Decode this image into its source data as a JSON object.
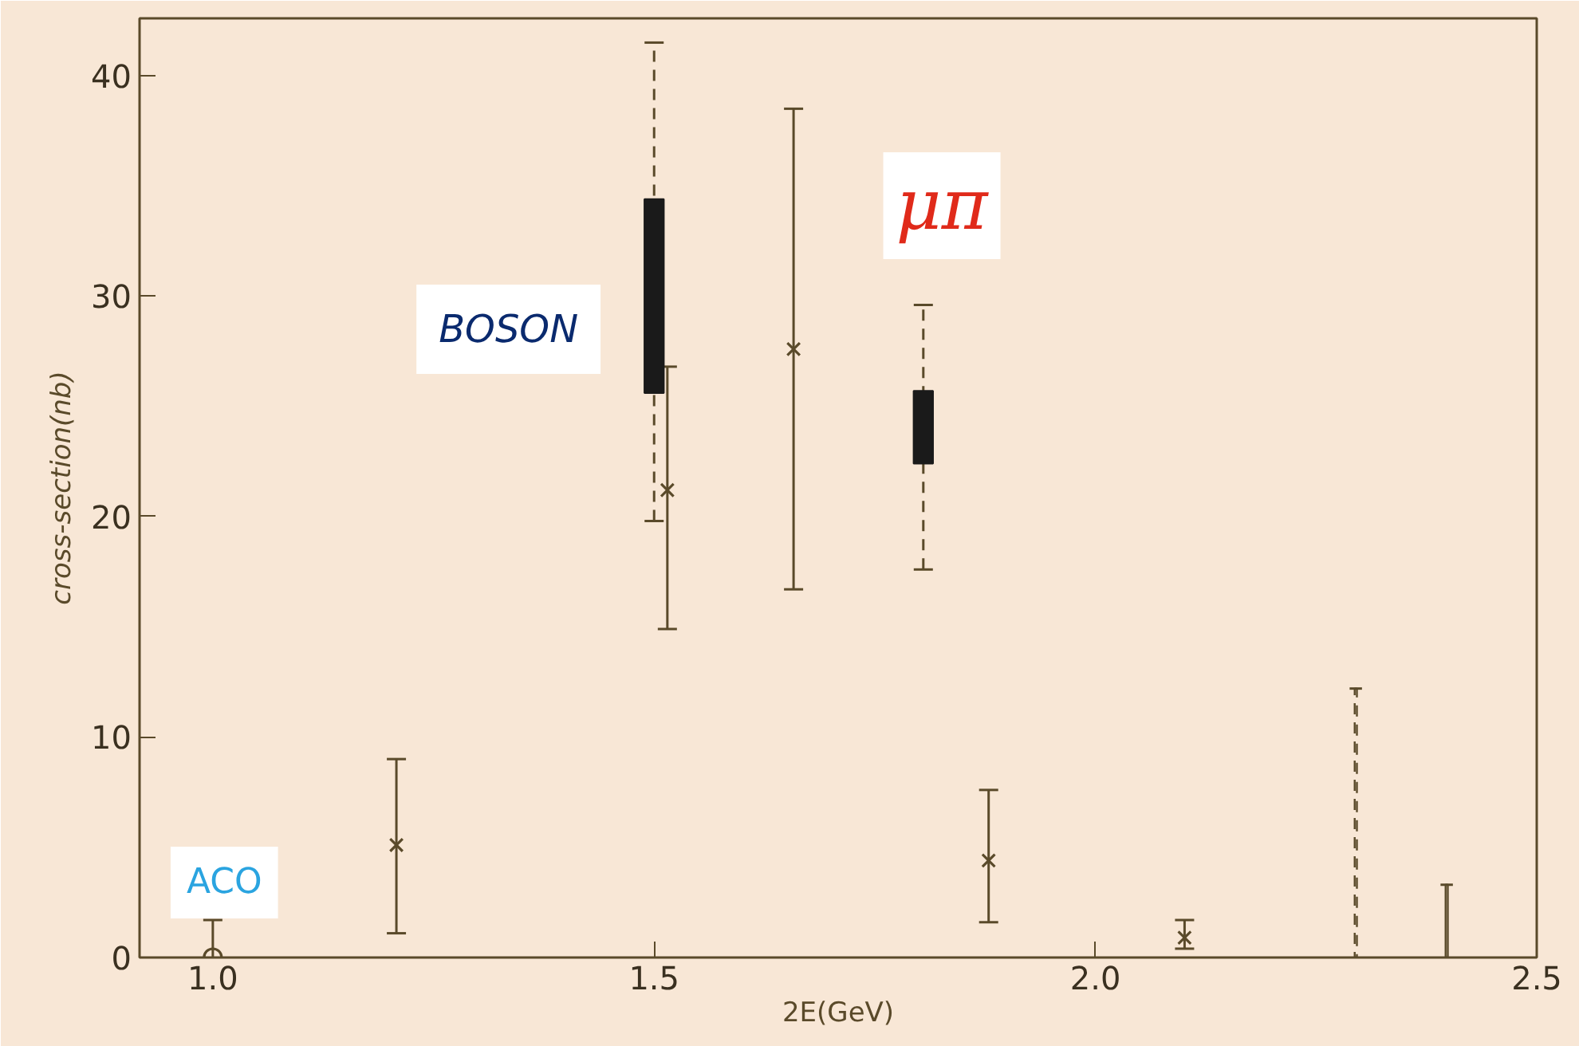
{
  "chart_data": {
    "type": "scatter",
    "xlabel": "2E(GeV)",
    "ylabel": "cross-section(nb)",
    "xlim": [
      0.917,
      2.5
    ],
    "ylim": [
      0,
      42.6
    ],
    "xticks": [
      {
        "value": 1.0,
        "label": "1.0"
      },
      1.5,
      {
        "value": 2.0,
        "label": "2.0"
      },
      2.5
    ],
    "yticks": [
      0,
      10,
      20,
      30,
      40
    ],
    "grid": false,
    "annotations": [
      "BOSON",
      "ACO",
      "μπ"
    ],
    "series": [
      {
        "marker": "circle",
        "color": "#5a4a2a",
        "x": [
          1.0
        ],
        "values": [
          0
        ],
        "errors": [
          [
            0,
            1.7
          ]
        ]
      },
      {
        "marker": "cross",
        "color": "#5a4a2a",
        "x": [
          1.208,
          1.515,
          1.658,
          1.879,
          2.101
        ],
        "values": [
          5.1,
          21.2,
          27.6,
          4.4,
          0.9
        ],
        "errors": [
          [
            1.1,
            9.0
          ],
          [
            14.9,
            26.8
          ],
          [
            16.7,
            38.5
          ],
          [
            1.6,
            7.6
          ],
          [
            0.4,
            1.7
          ]
        ]
      },
      {
        "type": "bar",
        "color": "#1a1a1a",
        "line_style": "dashed",
        "x": [
          1.5,
          1.805
        ],
        "base": [
          25.6,
          22.4
        ],
        "values": [
          8.8,
          3.3
        ],
        "errors": [
          [
            19.8,
            41.5
          ],
          [
            17.6,
            29.6
          ]
        ]
      },
      {
        "type": "bar",
        "line_style": "dashed",
        "color": "#5a4a2a",
        "x": [
          2.295
        ],
        "base": [
          0
        ],
        "values": [
          12.2
        ]
      },
      {
        "type": "bar",
        "color": "#5a4a2a",
        "x": [
          2.398
        ],
        "base": [
          0
        ],
        "values": [
          3.3
        ]
      }
    ]
  }
}
